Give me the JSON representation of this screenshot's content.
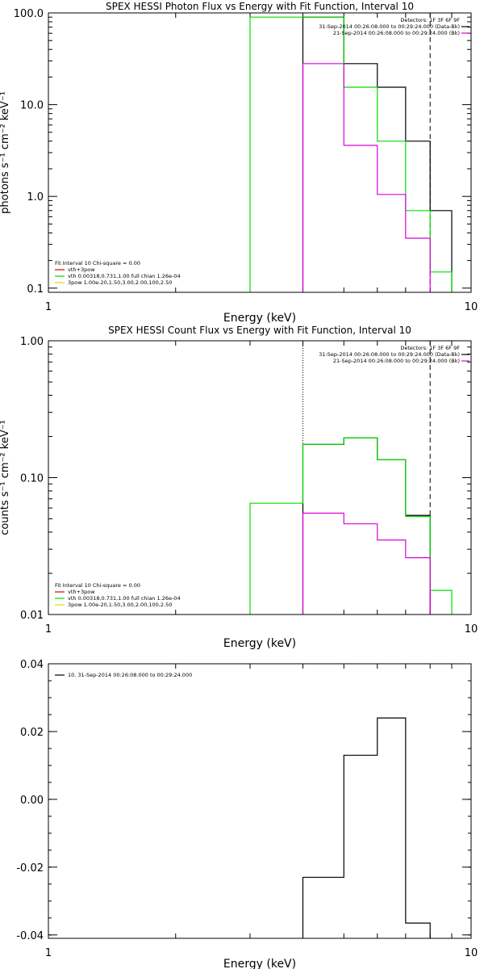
{
  "chart_data": [
    {
      "type": "line",
      "panel": "photon",
      "title": "SPEX HESSI Photon Flux vs Energy with Fit Function, Interval 10",
      "xlabel": "Energy (keV)",
      "ylabel": "photons s⁻¹ cm⁻² keV⁻¹",
      "x_scale": "log",
      "y_scale": "log",
      "xlim": [
        1,
        10
      ],
      "ylim": [
        0.09,
        100
      ],
      "x_ticks": [
        {
          "v": 1,
          "label": "1"
        },
        {
          "v": 10,
          "label": "10"
        }
      ],
      "y_ticks": [
        {
          "v": 0.1,
          "label": "0.1"
        },
        {
          "v": 1,
          "label": "1.0"
        },
        {
          "v": 10,
          "label": "10.0"
        },
        {
          "v": 100,
          "label": "100.0"
        }
      ],
      "edges": [
        3,
        4,
        5,
        6,
        7,
        8,
        9
      ],
      "series": [
        {
          "key": "black",
          "color": "#000000",
          "values": [
            null,
            90,
            28,
            15.5,
            4.0,
            0.7,
            null
          ]
        },
        {
          "key": "green",
          "color": "#00dd00",
          "values": [
            90,
            90,
            15.5,
            4.0,
            0.7,
            0.15
          ]
        },
        {
          "key": "magenta",
          "color": "#dd00dd",
          "values": [
            null,
            28,
            3.6,
            1.05,
            0.35,
            null
          ]
        }
      ],
      "vlines": [
        {
          "x": 4,
          "style": "dotted"
        },
        {
          "x": 8,
          "style": "dashed"
        }
      ],
      "legend_tr_title": "Detectors: 1F 3F 6F 9F",
      "legend_tr": [
        {
          "text": "31-Sep-2014 00:26:08.000 to 00:29:24.000 (Data-Bk)",
          "color": "#000000"
        },
        {
          "text": "21-Sep-2014 00:26:08.000 to 00:29:24.000 (Bk)",
          "color": "#dd00dd"
        }
      ],
      "legend_bl": [
        {
          "text": "Fit Interval 10   Chi-square = 0.00",
          "color": null
        },
        {
          "text": "vth+3pow",
          "color": "#dd0000"
        },
        {
          "text": "vth 0.00318,0.731,1.00  full chian 1.26e-04",
          "color": "#00dd00"
        },
        {
          "text": "3pow 1.00e-20,1.50,3.00,2.00,100,2.50",
          "color": "#dddd00"
        }
      ]
    },
    {
      "type": "line",
      "panel": "count",
      "title": "SPEX HESSI Count Flux vs Energy with Fit Function, Interval 10",
      "xlabel": "Energy (keV)",
      "ylabel": "counts s⁻¹ cm⁻² keV⁻¹",
      "x_scale": "log",
      "y_scale": "log",
      "xlim": [
        1,
        10
      ],
      "ylim": [
        0.01,
        1
      ],
      "x_ticks": [
        {
          "v": 1,
          "label": "1"
        },
        {
          "v": 10,
          "label": "10"
        }
      ],
      "y_ticks": [
        {
          "v": 0.01,
          "label": "0.01"
        },
        {
          "v": 0.1,
          "label": "0.10"
        },
        {
          "v": 1,
          "label": "1.00"
        }
      ],
      "edges": [
        3,
        4,
        5,
        6,
        7,
        8,
        9
      ],
      "series": [
        {
          "key": "black",
          "color": "#000000",
          "values": [
            null,
            0.175,
            0.195,
            0.135,
            0.053,
            null
          ]
        },
        {
          "key": "green",
          "color": "#00dd00",
          "values": [
            0.065,
            0.175,
            0.195,
            0.135,
            0.052,
            0.015
          ]
        },
        {
          "key": "magenta",
          "color": "#dd00dd",
          "values": [
            null,
            0.055,
            0.046,
            0.035,
            0.026,
            null
          ]
        }
      ],
      "vlines": [
        {
          "x": 4,
          "style": "dotted"
        },
        {
          "x": 8,
          "style": "dashed"
        }
      ],
      "legend_tr_title": "Detectors: 1F 3F 6F 9F",
      "legend_tr": [
        {
          "text": "31-Sep-2014 00:26:08.000 to 00:29:24.000 (Data-Bk)",
          "color": "#000000"
        },
        {
          "text": "21-Sep-2014 00:26:08.000 to 00:29:24.000 (Bk)",
          "color": "#dd00dd"
        }
      ],
      "legend_bl": [
        {
          "text": "Fit Interval 10   Chi-square = 0.00",
          "color": null
        },
        {
          "text": "vth+3pow",
          "color": "#dd0000"
        },
        {
          "text": "vth 0.00318,0.731,1.00  full chian 1.26e-04",
          "color": "#00dd00"
        },
        {
          "text": "3pow 1.00e-20,1.50,3.00,2.00,100,2.50",
          "color": "#dddd00"
        }
      ]
    },
    {
      "type": "line",
      "panel": "residuals",
      "title": "",
      "xlabel": "Energy (keV)",
      "ylabel": "",
      "x_scale": "log",
      "y_scale": "linear",
      "xlim": [
        1,
        10
      ],
      "ylim": [
        -0.041,
        0.04
      ],
      "x_ticks": [
        {
          "v": 1,
          "label": "1"
        },
        {
          "v": 10,
          "label": "10"
        }
      ],
      "y_ticks": [
        {
          "v": -0.04,
          "label": "-0.04"
        },
        {
          "v": -0.02,
          "label": "-0.02"
        },
        {
          "v": 0,
          "label": "0.00"
        },
        {
          "v": 0.02,
          "label": "0.02"
        },
        {
          "v": 0.04,
          "label": "0.04"
        }
      ],
      "edges": [
        4,
        5,
        6,
        7,
        8
      ],
      "series": [
        {
          "key": "black",
          "color": "#000000",
          "values": [
            -0.023,
            0.013,
            0.024,
            -0.0365
          ]
        }
      ],
      "vlines": [],
      "legend_tl": [
        {
          "text": "10. 31-Sep-2014 00:26:08.000 to 00:29:24.000",
          "color": "#000000"
        }
      ]
    }
  ]
}
